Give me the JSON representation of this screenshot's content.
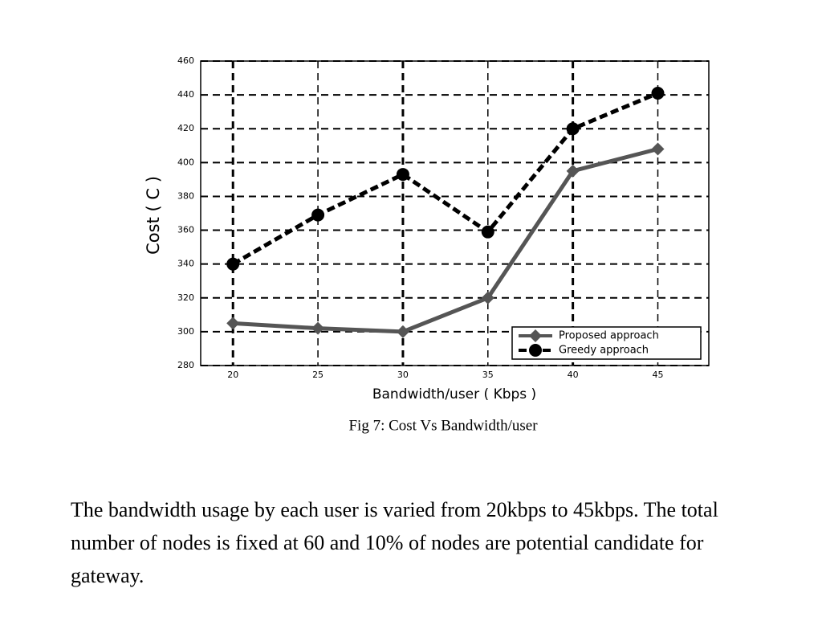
{
  "chart_data": {
    "type": "line",
    "caption": "Fig 7: Cost Vs Bandwidth/user",
    "x_label": "Bandwidth/user ( Kbps )",
    "y_label": "Cost ( C )",
    "x": [
      20,
      25,
      30,
      35,
      40,
      45
    ],
    "series": [
      {
        "name": "Proposed approach",
        "color": "#555555",
        "linestyle": "solid",
        "marker": "diamond",
        "values": [
          305,
          302,
          300,
          320,
          395,
          408
        ]
      },
      {
        "name": "Greedy approach",
        "color": "#000000",
        "linestyle": "dashed",
        "marker": "circle",
        "values": [
          340,
          369,
          393,
          359,
          420,
          441
        ]
      }
    ],
    "xlim": [
      18.1,
      48
    ],
    "xticks": [
      20,
      25,
      30,
      35,
      40,
      45
    ],
    "ylim": [
      280,
      460
    ],
    "yticks": [
      280,
      300,
      320,
      340,
      360,
      380,
      400,
      420,
      440,
      460
    ],
    "grid": true,
    "legend": "lower right"
  },
  "paragraph": "The bandwidth usage by each user is varied from 20kbps to 45kbps. The total number of nodes is fixed at 60 and 10% of nodes are potential candidate for gateway."
}
